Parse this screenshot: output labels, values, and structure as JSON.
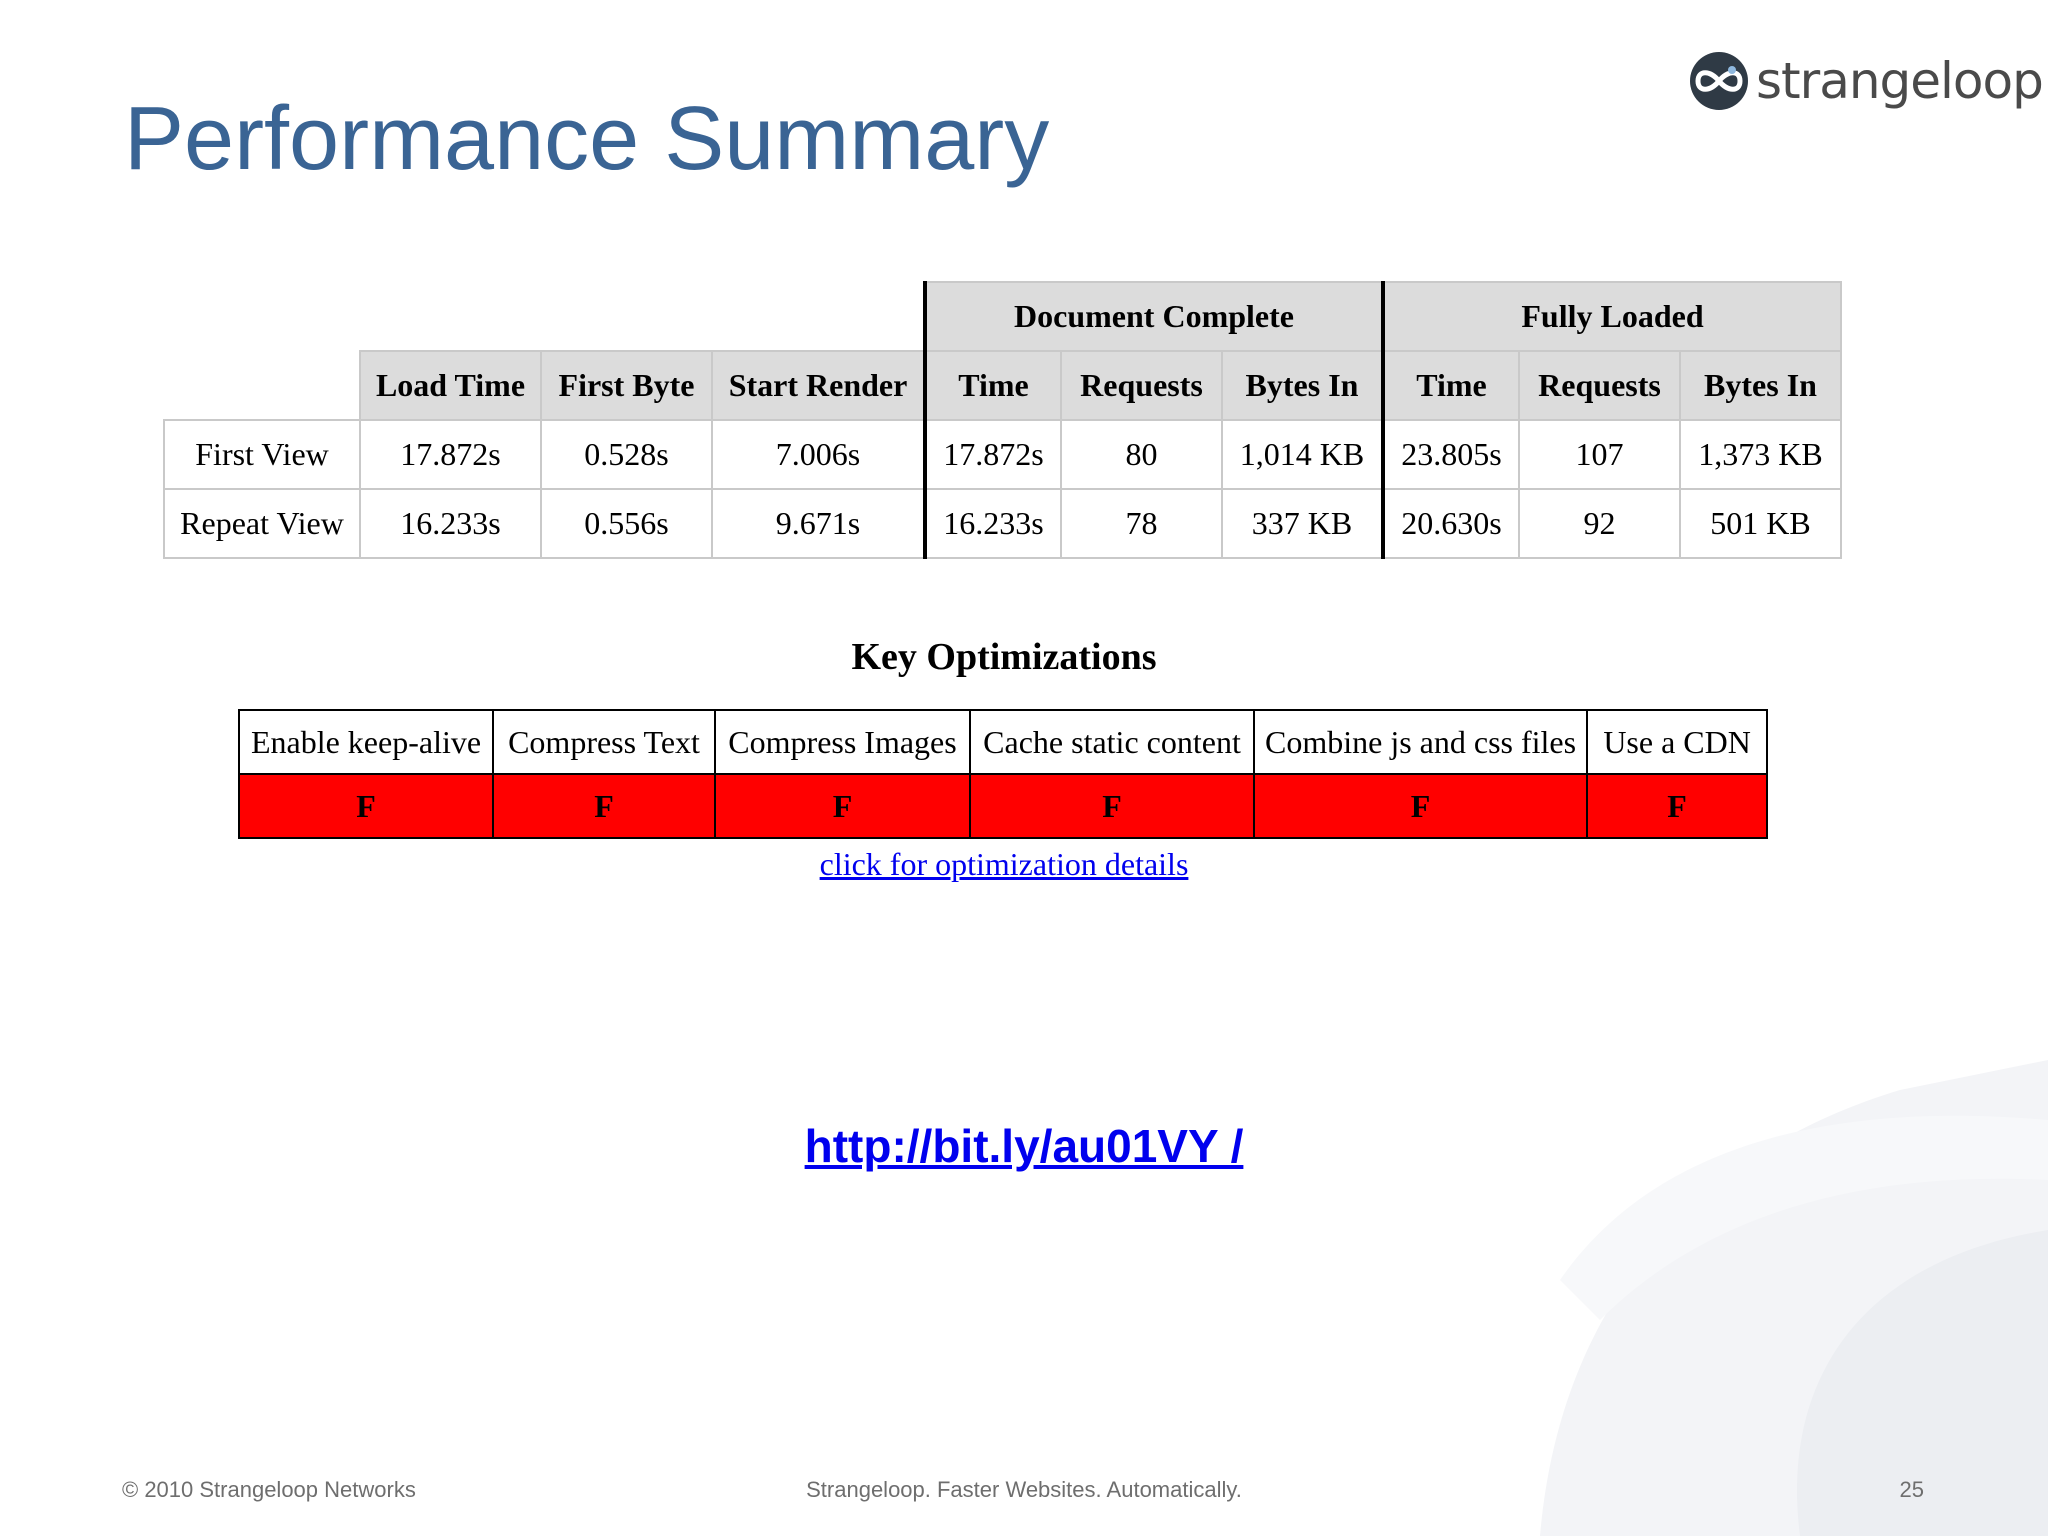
{
  "slide": {
    "title": "Performance Summary",
    "logo_text": "strangeloop"
  },
  "summary": {
    "group_headers": [
      "Document Complete",
      "Fully Loaded"
    ],
    "columns": [
      "Load Time",
      "First Byte",
      "Start Render",
      "Time",
      "Requests",
      "Bytes In",
      "Time",
      "Requests",
      "Bytes In"
    ],
    "rows": [
      {
        "label": "First View",
        "values": [
          "17.872s",
          "0.528s",
          "7.006s",
          "17.872s",
          "80",
          "1,014 KB",
          "23.805s",
          "107",
          "1,373 KB"
        ]
      },
      {
        "label": "Repeat View",
        "values": [
          "16.233s",
          "0.556s",
          "9.671s",
          "16.233s",
          "78",
          "337 KB",
          "20.630s",
          "92",
          "501 KB"
        ]
      }
    ]
  },
  "key_optimizations": {
    "title": "Key Optimizations",
    "headers": [
      "Enable keep-alive",
      "Compress Text",
      "Compress Images",
      "Cache static content",
      "Combine js and css files",
      "Use a CDN"
    ],
    "grades": [
      "F",
      "F",
      "F",
      "F",
      "F",
      "F"
    ],
    "grade_color": "#ff0000",
    "details_link": "click for optimization details"
  },
  "short_url": "http://bit.ly/au01VY /",
  "footer": {
    "left": "© 2010 Strangeloop Networks",
    "center": "Strangeloop. Faster Websites. Automatically.",
    "page_number": "25"
  },
  "colors": {
    "title": "#3a6494",
    "link": "#0000ee",
    "header_bg": "#dcdcdc"
  }
}
